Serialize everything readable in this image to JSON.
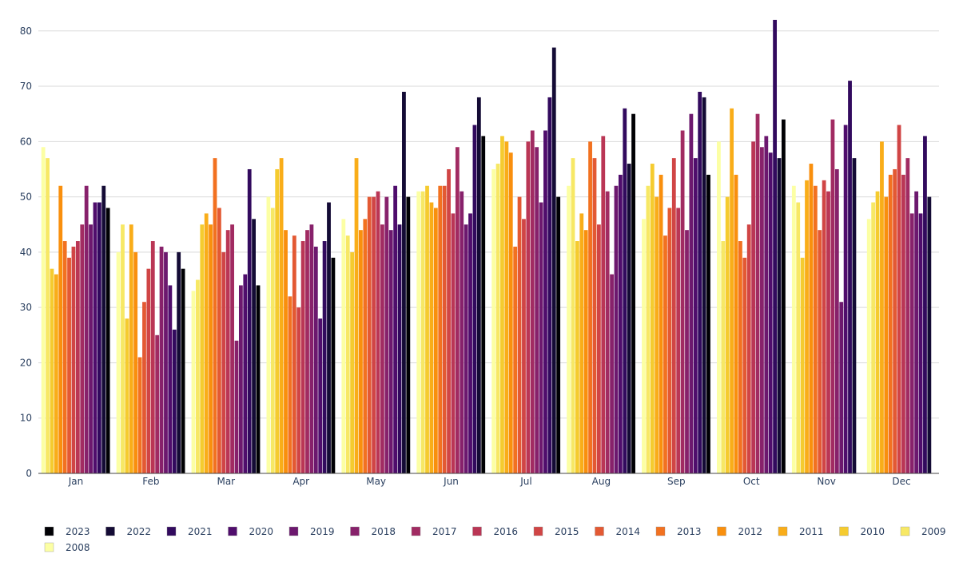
{
  "chart_data": {
    "type": "bar",
    "title": "",
    "xlabel": "",
    "ylabel": "",
    "ylim": [
      0,
      83
    ],
    "yticks": [
      0,
      10,
      20,
      30,
      40,
      50,
      60,
      70,
      80
    ],
    "grid": true,
    "legend_position": "bottom",
    "categories": [
      "Jan",
      "Feb",
      "Mar",
      "Apr",
      "May",
      "Jun",
      "Jul",
      "Aug",
      "Sep",
      "Oct",
      "Nov",
      "Dec"
    ],
    "series": [
      {
        "name": "2008",
        "color": "#fcffa4",
        "values": [
          59,
          40,
          33,
          50,
          46,
          51,
          55,
          52,
          46,
          60,
          52,
          46
        ]
      },
      {
        "name": "2009",
        "color": "#f7e865",
        "values": [
          57,
          45,
          35,
          48,
          43,
          51,
          56,
          57,
          52,
          42,
          49,
          49
        ]
      },
      {
        "name": "2010",
        "color": "#f5cb2f",
        "values": [
          37,
          28,
          45,
          55,
          40,
          52,
          61,
          42,
          56,
          50,
          39,
          51
        ]
      },
      {
        "name": "2011",
        "color": "#f9ad19",
        "values": [
          36,
          45,
          47,
          57,
          57,
          49,
          60,
          47,
          50,
          66,
          53,
          60
        ]
      },
      {
        "name": "2012",
        "color": "#f98f0d",
        "values": [
          52,
          40,
          45,
          44,
          44,
          48,
          58,
          44,
          54,
          54,
          56,
          50
        ]
      },
      {
        "name": "2013",
        "color": "#f27120",
        "values": [
          42,
          21,
          57,
          32,
          46,
          52,
          41,
          60,
          43,
          42,
          52,
          54
        ]
      },
      {
        "name": "2014",
        "color": "#e35933",
        "values": [
          39,
          31,
          48,
          43,
          50,
          52,
          50,
          57,
          48,
          39,
          44,
          55
        ]
      },
      {
        "name": "2015",
        "color": "#d04545",
        "values": [
          41,
          37,
          40,
          30,
          50,
          55,
          46,
          45,
          57,
          45,
          53,
          63
        ]
      },
      {
        "name": "2016",
        "color": "#ba3655",
        "values": [
          42,
          42,
          44,
          42,
          51,
          47,
          60,
          61,
          48,
          60,
          51,
          54
        ]
      },
      {
        "name": "2017",
        "color": "#a12b62",
        "values": [
          45,
          25,
          45,
          44,
          45,
          59,
          62,
          51,
          62,
          65,
          64,
          57
        ]
      },
      {
        "name": "2018",
        "color": "#87216b",
        "values": [
          52,
          41,
          24,
          45,
          50,
          51,
          59,
          36,
          44,
          59,
          55,
          47
        ]
      },
      {
        "name": "2019",
        "color": "#6c186e",
        "values": [
          45,
          40,
          34,
          41,
          44,
          45,
          49,
          52,
          65,
          61,
          31,
          51
        ]
      },
      {
        "name": "2020",
        "color": "#4f0d6c",
        "values": [
          49,
          34,
          36,
          28,
          52,
          47,
          62,
          54,
          57,
          58,
          63,
          47
        ]
      },
      {
        "name": "2021",
        "color": "#320a5e",
        "values": [
          49,
          26,
          55,
          42,
          45,
          63,
          68,
          66,
          69,
          82,
          71,
          61
        ]
      },
      {
        "name": "2022",
        "color": "#140b35",
        "values": [
          52,
          40,
          46,
          49,
          69,
          68,
          77,
          56,
          68,
          57,
          57,
          50
        ]
      },
      {
        "name": "2023",
        "color": "#000004",
        "values": [
          48,
          37,
          34,
          39,
          50,
          61,
          50,
          65,
          54,
          64,
          null,
          null
        ]
      }
    ],
    "legend_order": [
      "2023",
      "2022",
      "2021",
      "2020",
      "2019",
      "2018",
      "2017",
      "2016",
      "2015",
      "2014",
      "2013",
      "2012",
      "2011",
      "2010",
      "2009",
      "2008"
    ]
  }
}
